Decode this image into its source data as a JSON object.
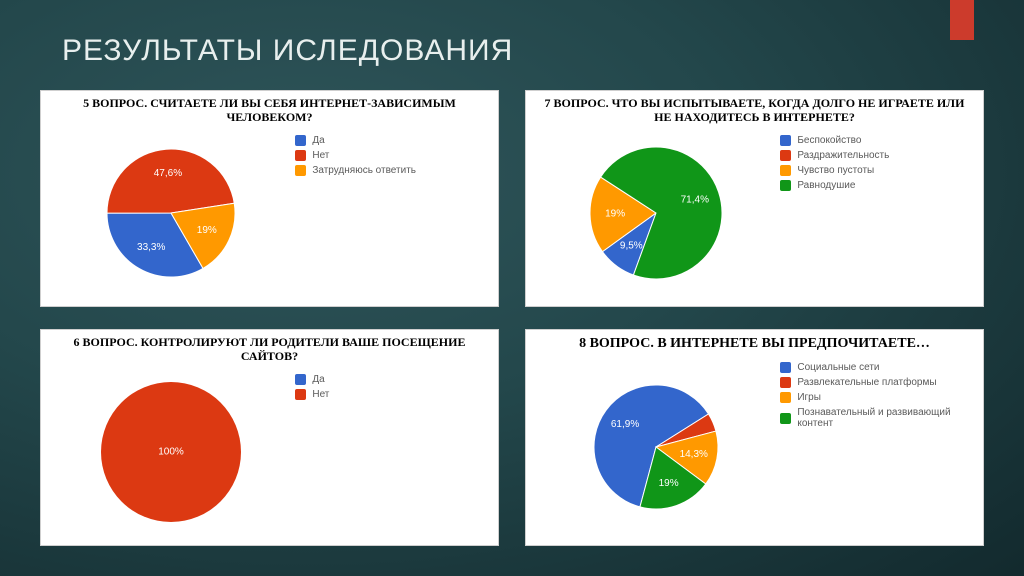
{
  "slide": {
    "title": "РЕЗУЛЬТАТЫ ИСЛЕДОВАНИЯ",
    "title_fontsize": 30,
    "title_color": "#e8efee",
    "accent_color": "#cc3b2c"
  },
  "panels": [
    {
      "title": "5 ВОПРОС. СЧИТАЕТЕ ЛИ ВЫ  СЕБЯ ИНТЕРНЕТ-ЗАВИСИМЫМ ЧЕЛОВЕКОМ?",
      "title_fontsize": 12,
      "type": "pie",
      "pie_radius": 64,
      "start_angle": 150,
      "legend_fontsize": 10,
      "slices": [
        {
          "label": "Да",
          "value": 33.3,
          "text": "33,3%",
          "color": "#3366cc"
        },
        {
          "label": "Нет",
          "value": 47.6,
          "text": "47,6%",
          "color": "#dc3912"
        },
        {
          "label": "Затрудняюсь ответить",
          "value": 19.1,
          "text": "19%",
          "color": "#ff9900"
        }
      ]
    },
    {
      "title": "7 ВОПРОС. ЧТО ВЫ ИСПЫТЫВАЕТЕ, КОГДА ДОЛГО НЕ ИГРАЕТЕ ИЛИ НЕ НАХОДИТЕСЬ В ИНТЕРНЕТЕ?",
      "title_fontsize": 12,
      "type": "pie",
      "pie_radius": 66,
      "start_angle": 200,
      "legend_fontsize": 10,
      "slices": [
        {
          "label": "Беспокойство",
          "value": 9.5,
          "text": "9,5%",
          "color": "#3366cc"
        },
        {
          "label": "Раздражительность",
          "value": 0,
          "text": "",
          "color": "#dc3912"
        },
        {
          "label": "Чувство пустоты",
          "value": 19.1,
          "text": "19%",
          "color": "#ff9900"
        },
        {
          "label": "Равнодушие",
          "value": 71.4,
          "text": "71,4%",
          "color": "#109618"
        }
      ]
    },
    {
      "title": "6 ВОПРОС. КОНТРОЛИРУЮТ ЛИ РОДИТЕЛИ ВАШЕ ПОСЕЩЕНИЕ САЙТОВ?",
      "title_fontsize": 12,
      "type": "pie",
      "pie_radius": 70,
      "start_angle": 0,
      "legend_fontsize": 10,
      "slices": [
        {
          "label": "Да",
          "value": 0,
          "text": "",
          "color": "#3366cc"
        },
        {
          "label": "Нет",
          "value": 100,
          "text": "100%",
          "color": "#dc3912"
        }
      ]
    },
    {
      "title": "8 ВОПРОС. В ИНТЕРНЕТЕ ВЫ ПРЕДПОЧИТАЕТЕ…",
      "title_fontsize": 14,
      "type": "pie",
      "pie_radius": 62,
      "start_angle": 195,
      "legend_fontsize": 10,
      "slices": [
        {
          "label": "Социальные сети",
          "value": 61.9,
          "text": "61,9%",
          "color": "#3366cc"
        },
        {
          "label": "Развлекательные платформы",
          "value": 4.8,
          "text": "",
          "color": "#dc3912"
        },
        {
          "label": "Игры",
          "value": 14.3,
          "text": "14,3%",
          "color": "#ff9900"
        },
        {
          "label": "Познавательный и развивающий контент",
          "value": 19.0,
          "text": "19%",
          "color": "#109618"
        }
      ]
    }
  ]
}
